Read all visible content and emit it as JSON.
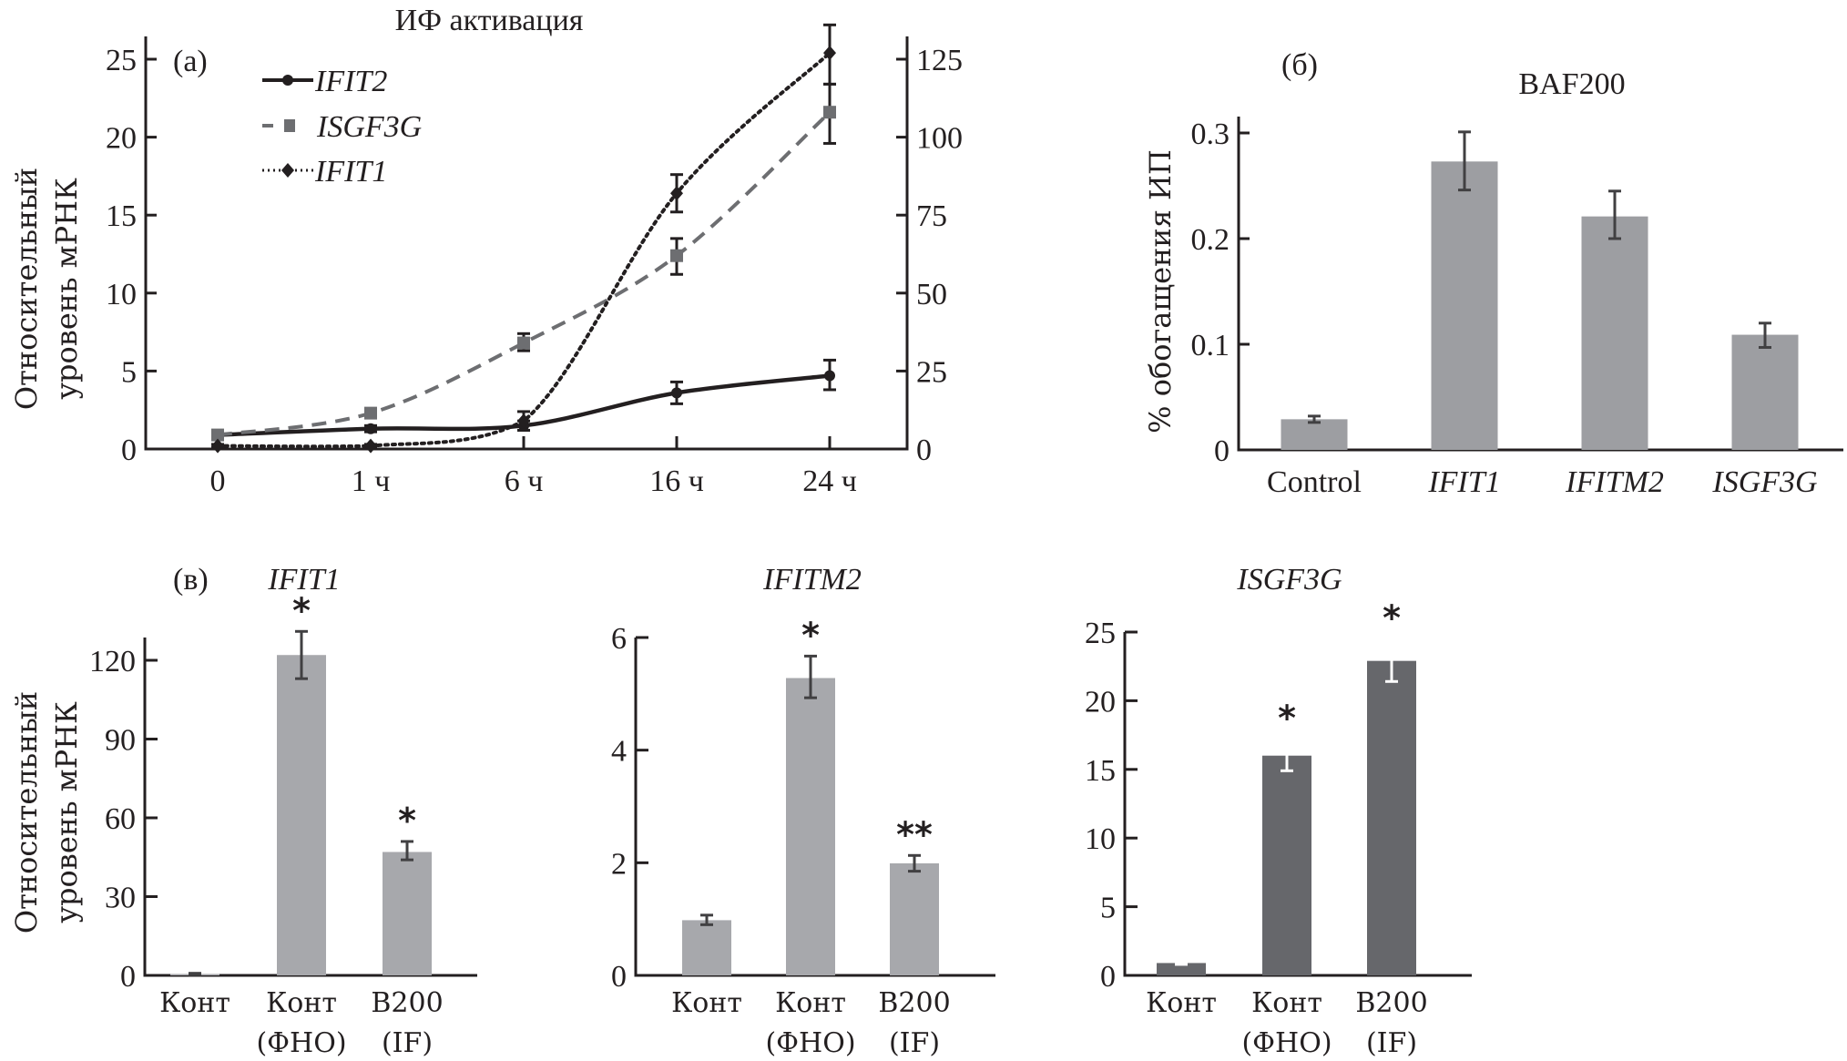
{
  "chart_data": [
    {
      "id": "a",
      "type": "line",
      "panel_label": "(a)",
      "title": "ИФ активация",
      "ylabel_lines": [
        "Относительный",
        "уровень мРНК"
      ],
      "categories": [
        "0",
        "1 ч",
        "6 ч",
        "16 ч",
        "24 ч"
      ],
      "ylim_left": [
        0,
        25
      ],
      "yticks_left": [
        0,
        5,
        10,
        15,
        20,
        25
      ],
      "ylim_right": [
        0,
        125
      ],
      "yticks_right": [
        0,
        25,
        50,
        75,
        100,
        125
      ],
      "legend_position": "top-left",
      "grid": false,
      "series": [
        {
          "name": "IFIT2",
          "axis": "left",
          "style": "solid",
          "marker": "circle",
          "color": "#231f20",
          "values": [
            0.9,
            1.3,
            1.5,
            3.6,
            4.7
          ],
          "err_low": [
            0.8,
            1.1,
            1.2,
            2.9,
            3.8
          ],
          "err_high": [
            1.0,
            1.5,
            1.8,
            4.3,
            5.7
          ]
        },
        {
          "name": "ISGF3G",
          "axis": "left",
          "style": "dashed",
          "marker": "square",
          "color": "#6d6e71",
          "values": [
            0.9,
            2.3,
            6.8,
            12.4,
            21.6
          ],
          "err_low": [
            0.8,
            2.1,
            6.3,
            11.2,
            19.6
          ],
          "err_high": [
            1.0,
            2.5,
            7.4,
            13.5,
            23.4
          ]
        },
        {
          "name": "IFIT1",
          "axis": "right",
          "style": "dotted",
          "marker": "diamond",
          "color": "#231f20",
          "values": [
            1,
            1,
            9,
            82,
            127
          ],
          "err_low": [
            0.5,
            0.5,
            6,
            76,
            117
          ],
          "err_high": [
            1.5,
            1.5,
            12,
            88,
            136
          ]
        }
      ]
    },
    {
      "id": "b",
      "type": "bar",
      "panel_label": "(б)",
      "title": "BAF200",
      "ylabel": "% обогащения ИП",
      "categories": [
        "Control",
        "IFIT1",
        "IFITM2",
        "ISGF3G"
      ],
      "category_italic": [
        false,
        true,
        true,
        true
      ],
      "values": [
        0.029,
        0.273,
        0.221,
        0.109
      ],
      "err_low": [
        0.026,
        0.246,
        0.2,
        0.097
      ],
      "err_high": [
        0.032,
        0.301,
        0.245,
        0.12
      ],
      "ylim": [
        0,
        0.3
      ],
      "yticks": [
        "0",
        "0.1",
        "0.2",
        "0.3"
      ],
      "bar_color": "#9d9ea2"
    },
    {
      "id": "c1",
      "type": "bar",
      "panel_label": "(в)",
      "title": "IFIT1",
      "ylabel_lines": [
        "Относительный",
        "уровень мРНК"
      ],
      "categories": [
        [
          "Конт",
          ""
        ],
        [
          "Конт",
          "(ФНО)"
        ],
        [
          "B200",
          "(IF)"
        ]
      ],
      "values": [
        0.5,
        122,
        47
      ],
      "err_low": [
        0.3,
        113,
        44
      ],
      "err_high": [
        0.8,
        131,
        51
      ],
      "significance": [
        "",
        "*",
        "*"
      ],
      "ylim": [
        0,
        120
      ],
      "yticks": [
        0,
        30,
        60,
        90,
        120
      ],
      "bar_color": "#a7a8ac",
      "err_color": "#414042"
    },
    {
      "id": "c2",
      "type": "bar",
      "title": "IFITM2",
      "categories": [
        [
          "Конт",
          ""
        ],
        [
          "Конт",
          "(ФНО)"
        ],
        [
          "B200",
          "(IF)"
        ]
      ],
      "values": [
        0.98,
        5.28,
        1.99
      ],
      "err_low": [
        0.9,
        4.93,
        1.85
      ],
      "err_high": [
        1.07,
        5.67,
        2.13
      ],
      "significance": [
        "",
        "*",
        "**"
      ],
      "ylim": [
        0,
        6
      ],
      "yticks": [
        0,
        2,
        4,
        6
      ],
      "bar_color": "#a7a8ac",
      "err_color": "#414042"
    },
    {
      "id": "c3",
      "type": "bar",
      "title": "ISGF3G",
      "categories": [
        [
          "Конт",
          ""
        ],
        [
          "Конт",
          "(ФНО)"
        ],
        [
          "B200",
          "(IF)"
        ]
      ],
      "values": [
        0.9,
        16.0,
        22.9
      ],
      "err_low": [
        0.8,
        14.9,
        21.4
      ],
      "err_high": [
        1.0,
        17.2,
        24.5
      ],
      "significance": [
        "",
        "*",
        "*"
      ],
      "ylim": [
        0,
        25
      ],
      "yticks": [
        0,
        5,
        10,
        15,
        20,
        25
      ],
      "bar_color": "#66676b",
      "err_color": "#ffffff"
    }
  ]
}
